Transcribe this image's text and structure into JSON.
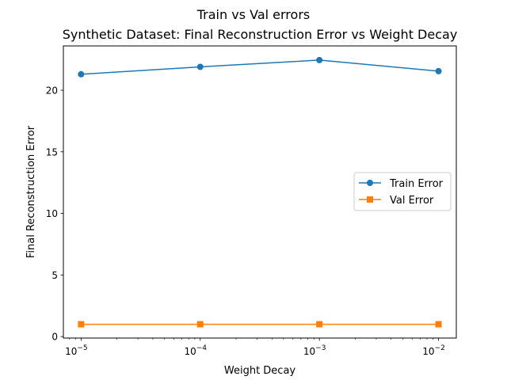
{
  "figure": {
    "suptitle": "Train vs Val errors"
  },
  "chart_data": {
    "type": "line",
    "title": "Synthetic Dataset: Final Reconstruction Error vs Weight Decay",
    "xlabel": "Weight Decay",
    "ylabel": "Final Reconstruction Error",
    "xscale": "log",
    "x": [
      1e-05,
      0.0001,
      0.001,
      0.01
    ],
    "xlim": [
      7.1e-06,
      0.0141
    ],
    "ylim": [
      -0.12,
      23.6
    ],
    "xticks": [
      {
        "value": 1e-05,
        "base": "10",
        "exp": "−5"
      },
      {
        "value": 0.0001,
        "base": "10",
        "exp": "−4"
      },
      {
        "value": 0.001,
        "base": "10",
        "exp": "−3"
      },
      {
        "value": 0.01,
        "base": "10",
        "exp": "−2"
      }
    ],
    "yticks": [
      0,
      5,
      10,
      15,
      20
    ],
    "grid": false,
    "legend_position": "center-right",
    "series": [
      {
        "name": "Train Error",
        "marker": "circle",
        "color": "#1f77b4",
        "values": [
          21.3,
          21.9,
          22.45,
          21.55
        ]
      },
      {
        "name": "Val Error",
        "marker": "square",
        "color": "#ff7f0e",
        "values": [
          1.0,
          1.0,
          1.0,
          1.0
        ]
      }
    ]
  }
}
